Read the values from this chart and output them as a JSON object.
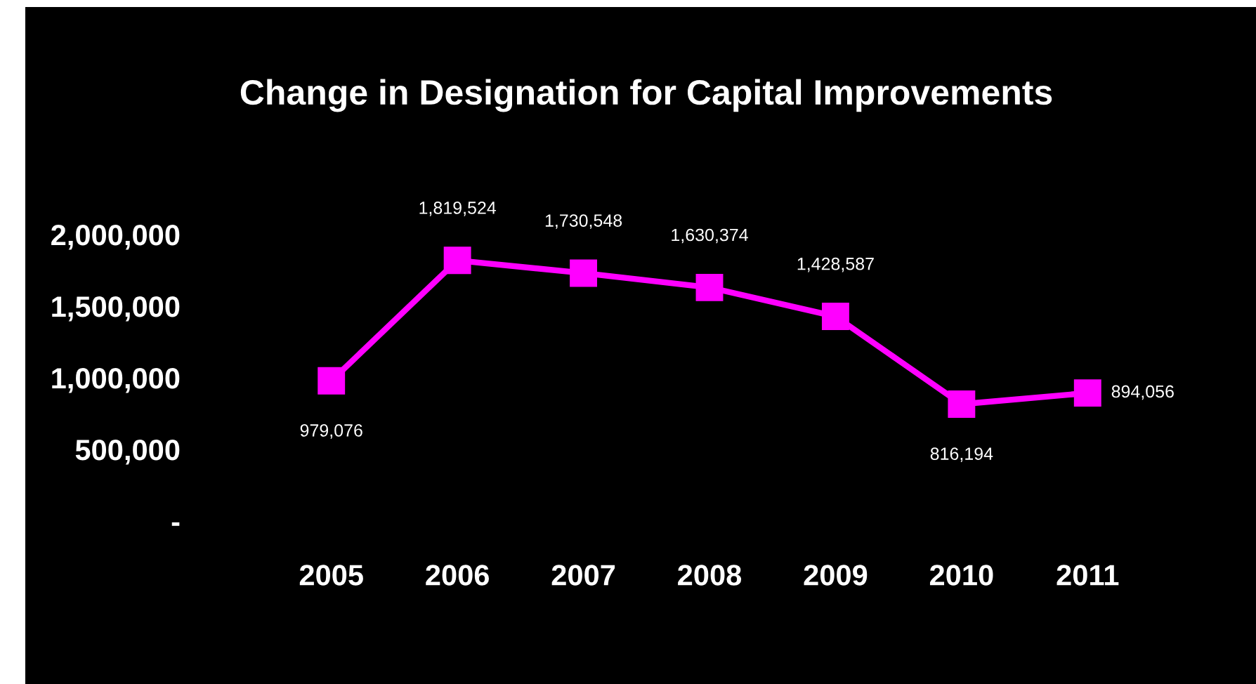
{
  "chart_data": {
    "type": "line",
    "title": "Change in Designation for Capital Improvements",
    "categories": [
      "2005",
      "2006",
      "2007",
      "2008",
      "2009",
      "2010",
      "2011"
    ],
    "series": [
      {
        "color": "#ff00ff",
        "values": [
          979076,
          1819524,
          1730548,
          1630374,
          1428587,
          816194,
          894056
        ],
        "value_labels": [
          "979,076",
          "1,819,524",
          "1,730,548",
          "1,630,374",
          "1,428,587",
          "816,194",
          "894,056"
        ]
      }
    ],
    "ylim": [
      0,
      2000000
    ],
    "yticks": [
      {
        "value": 0,
        "label": "-"
      },
      {
        "value": 500000,
        "label": "500,000"
      },
      {
        "value": 1000000,
        "label": "1,000,000"
      },
      {
        "value": 1500000,
        "label": "1,500,000"
      },
      {
        "value": 2000000,
        "label": "2,000,000"
      }
    ],
    "marker": "square",
    "line_style": "solid"
  }
}
